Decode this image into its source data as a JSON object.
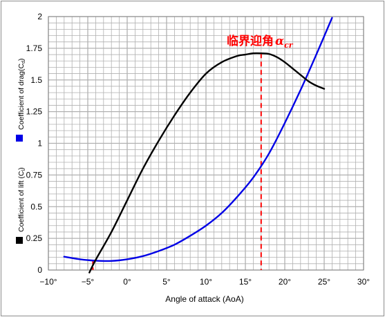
{
  "colors": {
    "cd_curve": "#0000e6",
    "cl_curve": "#000000",
    "annotation": "#ff0000",
    "grid": "#b0b0b0"
  },
  "chart_data": {
    "type": "line",
    "xlabel": "Angle of attack (AoA)",
    "ylabel_drag": "Coefficient of drag(C",
    "ylabel_drag_sub": "d",
    "ylabel_lift": "Coefficient of lift (C",
    "ylabel_lift_sub": "l",
    "xlim": [
      -10,
      30
    ],
    "ylim": [
      0,
      2
    ],
    "x_ticks": [
      {
        "value": -10,
        "label": "−10°"
      },
      {
        "value": -5,
        "label": "−5°"
      },
      {
        "value": 0,
        "label": "0°"
      },
      {
        "value": 5,
        "label": "5°"
      },
      {
        "value": 10,
        "label": "10°"
      },
      {
        "value": 15,
        "label": "15°"
      },
      {
        "value": 20,
        "label": "20°"
      },
      {
        "value": 25,
        "label": "25°"
      },
      {
        "value": 30,
        "label": "30°"
      }
    ],
    "y_ticks": [
      {
        "value": 0,
        "label": "0"
      },
      {
        "value": 0.25,
        "label": "0.25"
      },
      {
        "value": 0.5,
        "label": "0.5"
      },
      {
        "value": 0.75,
        "label": "0.75"
      },
      {
        "value": 1,
        "label": "1"
      },
      {
        "value": 1.25,
        "label": "1.25"
      },
      {
        "value": 1.5,
        "label": "1.5"
      },
      {
        "value": 1.75,
        "label": "1.75"
      },
      {
        "value": 2,
        "label": "2"
      }
    ],
    "grid": true,
    "series": [
      {
        "key": "cd",
        "color": "#0000e6",
        "x": [
          -8,
          -6,
          -4,
          -2,
          0,
          2,
          4,
          6,
          8,
          10,
          12,
          14,
          16,
          18,
          20,
          22,
          24,
          26
        ],
        "y": [
          0.105,
          0.085,
          0.074,
          0.072,
          0.085,
          0.11,
          0.15,
          0.2,
          0.27,
          0.35,
          0.45,
          0.58,
          0.73,
          0.92,
          1.16,
          1.42,
          1.7,
          1.99
        ]
      },
      {
        "key": "cl",
        "color": "#000000",
        "x": [
          -4.8,
          -4,
          -2,
          0,
          2,
          4,
          6,
          8,
          10,
          12,
          14,
          15,
          16,
          17,
          18,
          19,
          20,
          21,
          22,
          23,
          24,
          25
        ],
        "y": [
          -0.02,
          0.08,
          0.3,
          0.55,
          0.8,
          1.02,
          1.22,
          1.4,
          1.55,
          1.64,
          1.69,
          1.7,
          1.71,
          1.71,
          1.705,
          1.68,
          1.64,
          1.59,
          1.54,
          1.49,
          1.455,
          1.43
        ]
      }
    ],
    "annotation": {
      "text": "临界迎角",
      "symbol": "α",
      "symbol_sub": "cr",
      "x": 17
    },
    "legend_markers": [
      {
        "key": "cd",
        "color": "#0000e6"
      },
      {
        "key": "cl",
        "color": "#000000"
      }
    ]
  }
}
